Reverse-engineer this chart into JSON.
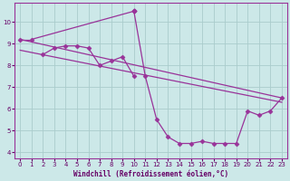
{
  "background_color": "#cce8e8",
  "grid_color": "#aacccc",
  "line_color": "#993399",
  "xlabel": "Windchill (Refroidissement éolien,°C)",
  "xticks": [
    0,
    1,
    2,
    3,
    4,
    5,
    6,
    7,
    8,
    9,
    10,
    11,
    12,
    13,
    14,
    15,
    16,
    17,
    18,
    19,
    20,
    21,
    22,
    23
  ],
  "yticks": [
    4,
    5,
    6,
    7,
    8,
    9,
    10
  ],
  "xlim": [
    -0.5,
    23.5
  ],
  "ylim": [
    3.7,
    10.9
  ],
  "series": [
    {
      "x": [
        0,
        1,
        10
      ],
      "y": [
        9.2,
        9.2,
        10.5
      ],
      "markers": [
        true,
        true,
        true
      ],
      "dashed": false
    },
    {
      "x": [
        10,
        11,
        12,
        13,
        14,
        15,
        16,
        17,
        18,
        19,
        20,
        21,
        22,
        23
      ],
      "y": [
        10.5,
        7.5,
        5.5,
        4.7,
        4.4,
        4.4,
        4.5,
        4.4,
        4.4,
        4.4,
        5.9,
        5.7,
        5.9,
        6.5
      ],
      "markers": [
        true,
        true,
        true,
        true,
        true,
        true,
        true,
        true,
        true,
        true,
        true,
        true,
        true,
        true
      ],
      "dashed": false
    },
    {
      "x": [
        2,
        3,
        4,
        5,
        6,
        7,
        8,
        9,
        10,
        11,
        12
      ],
      "y": [
        8.5,
        8.8,
        8.9,
        8.9,
        8.8,
        8.0,
        8.2,
        8.4,
        7.5,
        7.3,
        7.2
      ],
      "markers": [
        true,
        true,
        true,
        true,
        true,
        true,
        true,
        true,
        true,
        false,
        false
      ],
      "dashed": false
    },
    {
      "x": [
        0,
        23
      ],
      "y": [
        9.2,
        6.5
      ],
      "markers": [
        false,
        false
      ],
      "dashed": false
    },
    {
      "x": [
        2,
        23
      ],
      "y": [
        8.5,
        6.5
      ],
      "markers": [
        false,
        false
      ],
      "dashed": false
    }
  ]
}
